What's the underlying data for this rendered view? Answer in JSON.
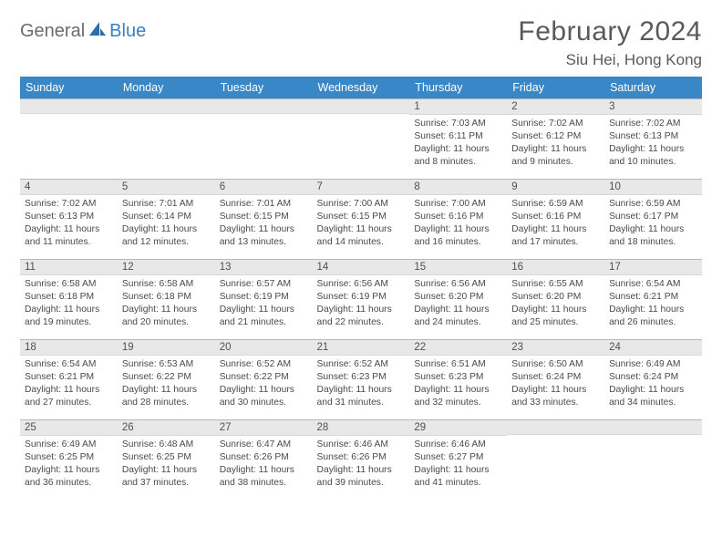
{
  "brand": {
    "general": "General",
    "blue": "Blue"
  },
  "title": "February 2024",
  "location": "Siu Hei, Hong Kong",
  "colors": {
    "header_bg": "#3a87c7",
    "header_text": "#ffffff",
    "daybar_bg": "#e8e8e8",
    "daybar_border": "#b8b8b8",
    "body_text": "#4a4a4a",
    "title_text": "#5a5a5a",
    "logo_gray": "#6b6b6b",
    "logo_blue": "#3a7fbf"
  },
  "day_headers": [
    "Sunday",
    "Monday",
    "Tuesday",
    "Wednesday",
    "Thursday",
    "Friday",
    "Saturday"
  ],
  "weeks": [
    [
      {
        "day": "",
        "lines": []
      },
      {
        "day": "",
        "lines": []
      },
      {
        "day": "",
        "lines": []
      },
      {
        "day": "",
        "lines": []
      },
      {
        "day": "1",
        "lines": [
          "Sunrise: 7:03 AM",
          "Sunset: 6:11 PM",
          "Daylight: 11 hours",
          "and 8 minutes."
        ]
      },
      {
        "day": "2",
        "lines": [
          "Sunrise: 7:02 AM",
          "Sunset: 6:12 PM",
          "Daylight: 11 hours",
          "and 9 minutes."
        ]
      },
      {
        "day": "3",
        "lines": [
          "Sunrise: 7:02 AM",
          "Sunset: 6:13 PM",
          "Daylight: 11 hours",
          "and 10 minutes."
        ]
      }
    ],
    [
      {
        "day": "4",
        "lines": [
          "Sunrise: 7:02 AM",
          "Sunset: 6:13 PM",
          "Daylight: 11 hours",
          "and 11 minutes."
        ]
      },
      {
        "day": "5",
        "lines": [
          "Sunrise: 7:01 AM",
          "Sunset: 6:14 PM",
          "Daylight: 11 hours",
          "and 12 minutes."
        ]
      },
      {
        "day": "6",
        "lines": [
          "Sunrise: 7:01 AM",
          "Sunset: 6:15 PM",
          "Daylight: 11 hours",
          "and 13 minutes."
        ]
      },
      {
        "day": "7",
        "lines": [
          "Sunrise: 7:00 AM",
          "Sunset: 6:15 PM",
          "Daylight: 11 hours",
          "and 14 minutes."
        ]
      },
      {
        "day": "8",
        "lines": [
          "Sunrise: 7:00 AM",
          "Sunset: 6:16 PM",
          "Daylight: 11 hours",
          "and 16 minutes."
        ]
      },
      {
        "day": "9",
        "lines": [
          "Sunrise: 6:59 AM",
          "Sunset: 6:16 PM",
          "Daylight: 11 hours",
          "and 17 minutes."
        ]
      },
      {
        "day": "10",
        "lines": [
          "Sunrise: 6:59 AM",
          "Sunset: 6:17 PM",
          "Daylight: 11 hours",
          "and 18 minutes."
        ]
      }
    ],
    [
      {
        "day": "11",
        "lines": [
          "Sunrise: 6:58 AM",
          "Sunset: 6:18 PM",
          "Daylight: 11 hours",
          "and 19 minutes."
        ]
      },
      {
        "day": "12",
        "lines": [
          "Sunrise: 6:58 AM",
          "Sunset: 6:18 PM",
          "Daylight: 11 hours",
          "and 20 minutes."
        ]
      },
      {
        "day": "13",
        "lines": [
          "Sunrise: 6:57 AM",
          "Sunset: 6:19 PM",
          "Daylight: 11 hours",
          "and 21 minutes."
        ]
      },
      {
        "day": "14",
        "lines": [
          "Sunrise: 6:56 AM",
          "Sunset: 6:19 PM",
          "Daylight: 11 hours",
          "and 22 minutes."
        ]
      },
      {
        "day": "15",
        "lines": [
          "Sunrise: 6:56 AM",
          "Sunset: 6:20 PM",
          "Daylight: 11 hours",
          "and 24 minutes."
        ]
      },
      {
        "day": "16",
        "lines": [
          "Sunrise: 6:55 AM",
          "Sunset: 6:20 PM",
          "Daylight: 11 hours",
          "and 25 minutes."
        ]
      },
      {
        "day": "17",
        "lines": [
          "Sunrise: 6:54 AM",
          "Sunset: 6:21 PM",
          "Daylight: 11 hours",
          "and 26 minutes."
        ]
      }
    ],
    [
      {
        "day": "18",
        "lines": [
          "Sunrise: 6:54 AM",
          "Sunset: 6:21 PM",
          "Daylight: 11 hours",
          "and 27 minutes."
        ]
      },
      {
        "day": "19",
        "lines": [
          "Sunrise: 6:53 AM",
          "Sunset: 6:22 PM",
          "Daylight: 11 hours",
          "and 28 minutes."
        ]
      },
      {
        "day": "20",
        "lines": [
          "Sunrise: 6:52 AM",
          "Sunset: 6:22 PM",
          "Daylight: 11 hours",
          "and 30 minutes."
        ]
      },
      {
        "day": "21",
        "lines": [
          "Sunrise: 6:52 AM",
          "Sunset: 6:23 PM",
          "Daylight: 11 hours",
          "and 31 minutes."
        ]
      },
      {
        "day": "22",
        "lines": [
          "Sunrise: 6:51 AM",
          "Sunset: 6:23 PM",
          "Daylight: 11 hours",
          "and 32 minutes."
        ]
      },
      {
        "day": "23",
        "lines": [
          "Sunrise: 6:50 AM",
          "Sunset: 6:24 PM",
          "Daylight: 11 hours",
          "and 33 minutes."
        ]
      },
      {
        "day": "24",
        "lines": [
          "Sunrise: 6:49 AM",
          "Sunset: 6:24 PM",
          "Daylight: 11 hours",
          "and 34 minutes."
        ]
      }
    ],
    [
      {
        "day": "25",
        "lines": [
          "Sunrise: 6:49 AM",
          "Sunset: 6:25 PM",
          "Daylight: 11 hours",
          "and 36 minutes."
        ]
      },
      {
        "day": "26",
        "lines": [
          "Sunrise: 6:48 AM",
          "Sunset: 6:25 PM",
          "Daylight: 11 hours",
          "and 37 minutes."
        ]
      },
      {
        "day": "27",
        "lines": [
          "Sunrise: 6:47 AM",
          "Sunset: 6:26 PM",
          "Daylight: 11 hours",
          "and 38 minutes."
        ]
      },
      {
        "day": "28",
        "lines": [
          "Sunrise: 6:46 AM",
          "Sunset: 6:26 PM",
          "Daylight: 11 hours",
          "and 39 minutes."
        ]
      },
      {
        "day": "29",
        "lines": [
          "Sunrise: 6:46 AM",
          "Sunset: 6:27 PM",
          "Daylight: 11 hours",
          "and 41 minutes."
        ]
      },
      {
        "day": "",
        "lines": []
      },
      {
        "day": "",
        "lines": []
      }
    ]
  ]
}
